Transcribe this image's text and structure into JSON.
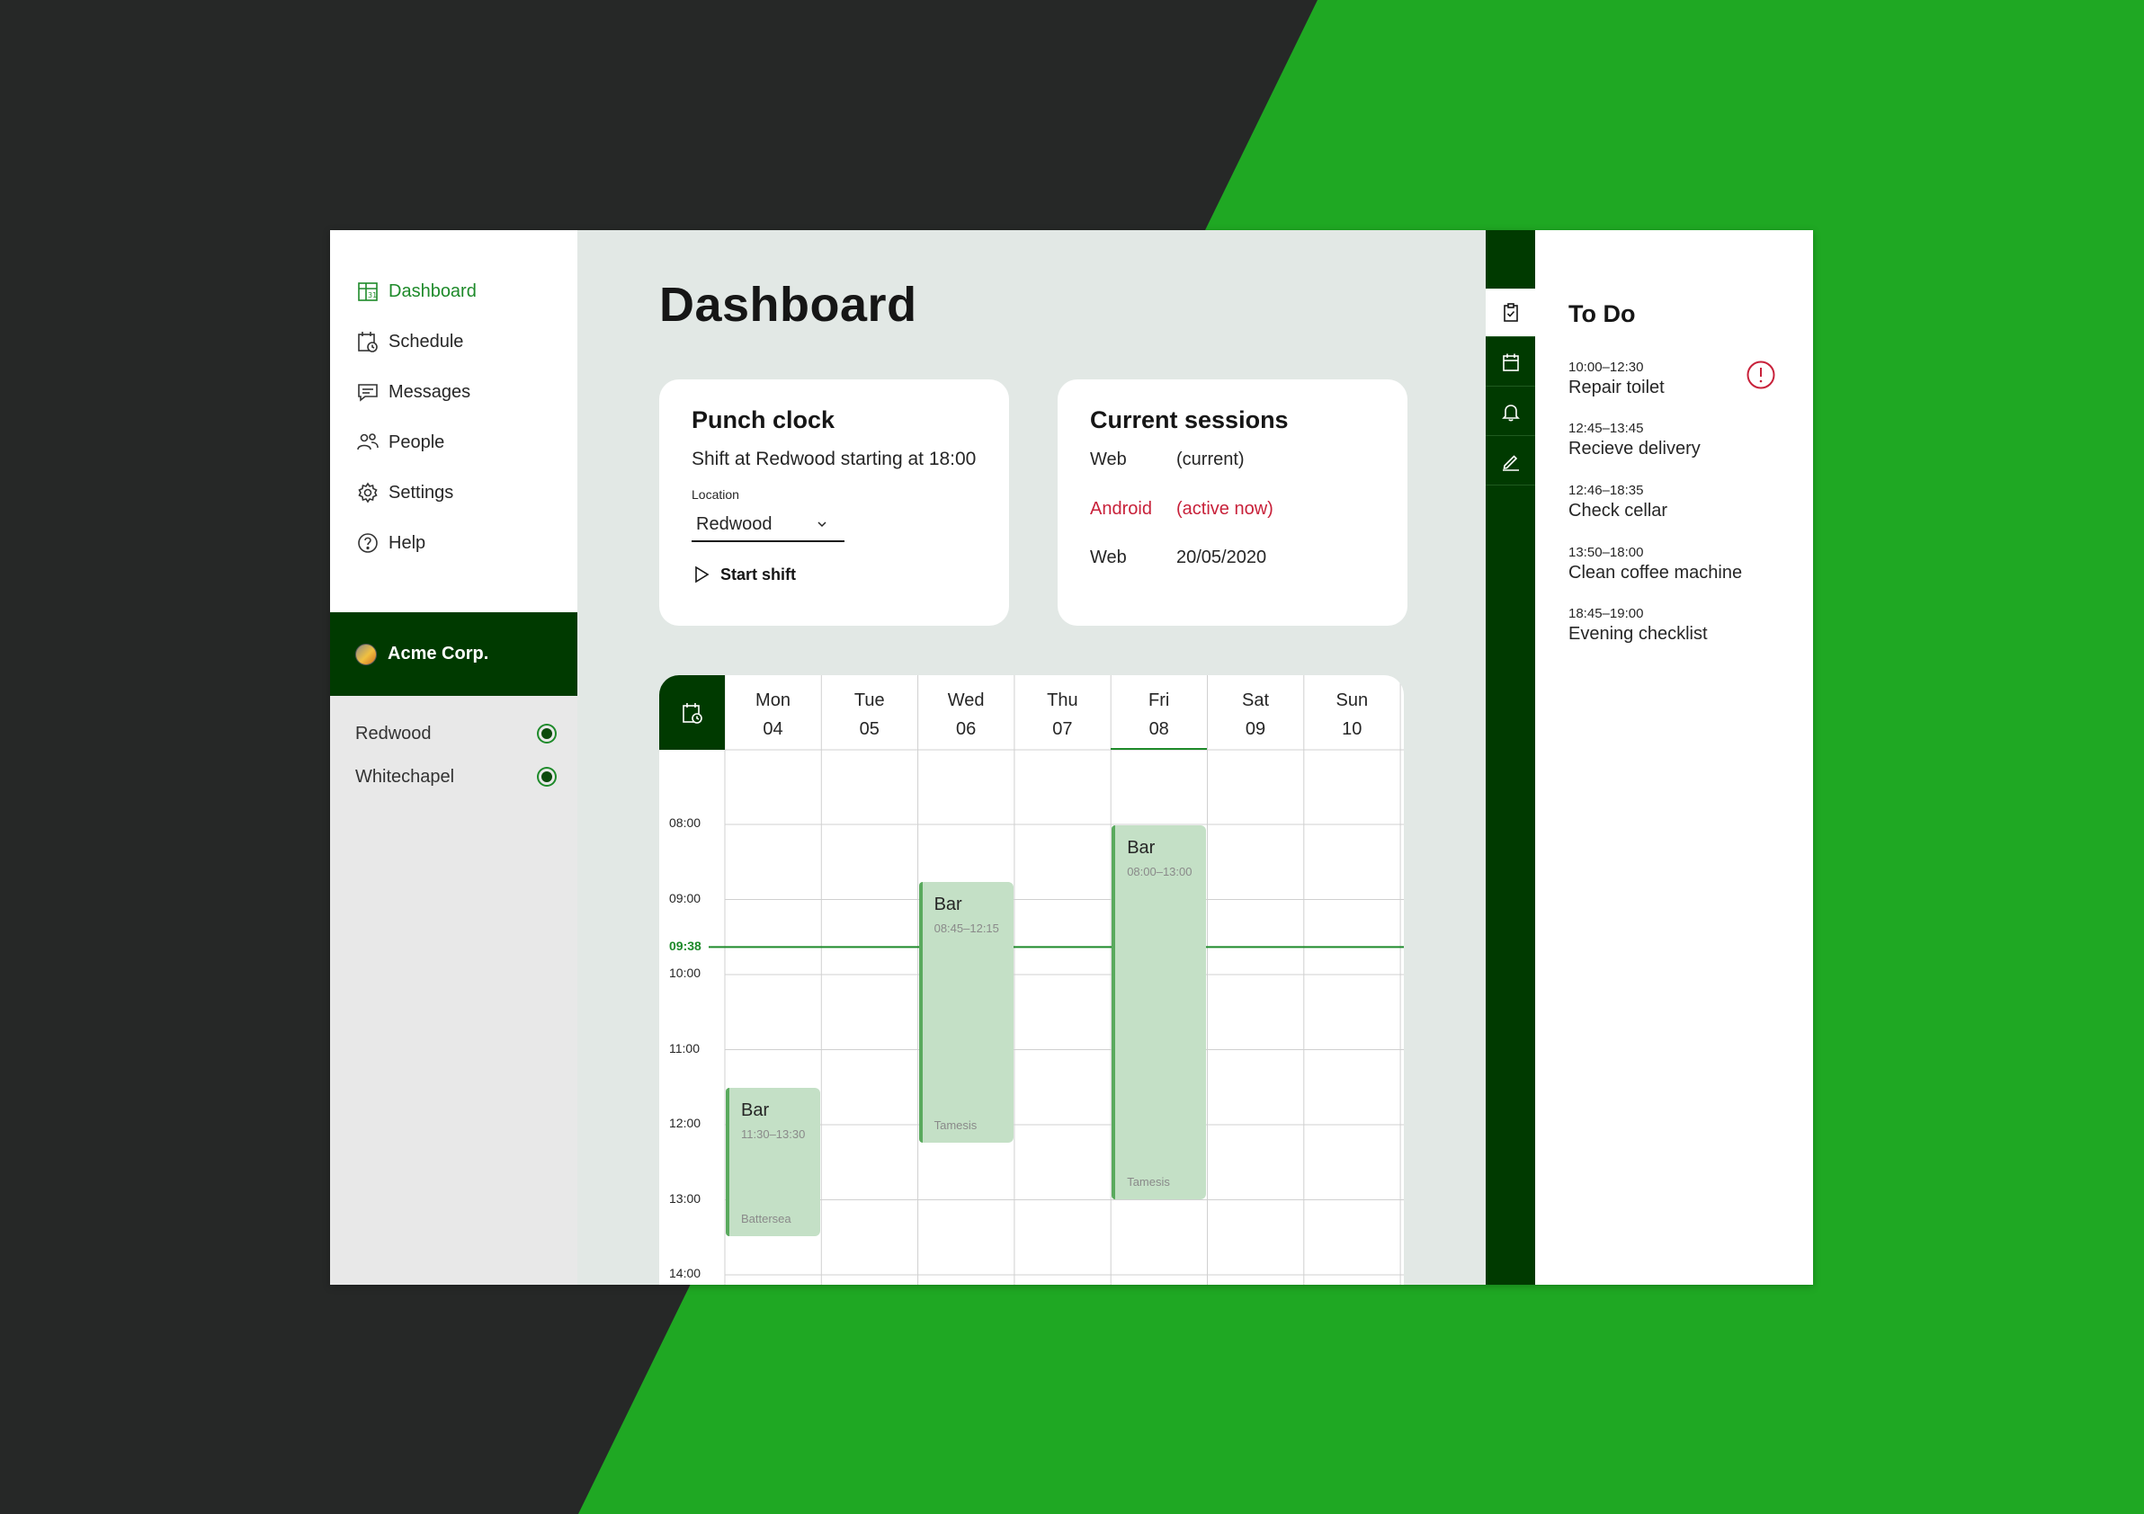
{
  "colors": {
    "accent_green": "#1e8a2a",
    "dark_green": "#003a00",
    "event_fill": "#c4e0c6",
    "alert_red": "#c8213a",
    "bright_green_bg": "#1fa823",
    "dark_bg": "#262827"
  },
  "nav": {
    "items": [
      {
        "label": "Dashboard",
        "icon": "dashboard-calendar-icon",
        "active": true
      },
      {
        "label": "Schedule",
        "icon": "schedule-clock-icon"
      },
      {
        "label": "Messages",
        "icon": "chat-icon"
      },
      {
        "label": "People",
        "icon": "people-icon"
      },
      {
        "label": "Settings",
        "icon": "gear-icon"
      },
      {
        "label": "Help",
        "icon": "help-icon"
      }
    ]
  },
  "org": {
    "name": "Acme Corp."
  },
  "locations": [
    {
      "name": "Redwood",
      "status": "online"
    },
    {
      "name": "Whitechapel",
      "status": "online"
    }
  ],
  "page": {
    "title": "Dashboard"
  },
  "punch_clock": {
    "title": "Punch clock",
    "shift_text": "Shift at Redwood starting at 18:00",
    "location_label": "Location",
    "location_value": "Redwood",
    "start_label": "Start shift"
  },
  "sessions": {
    "title": "Current sessions",
    "rows": [
      {
        "device": "Web",
        "status": "(current)"
      },
      {
        "device": "Android",
        "status": "(active now)",
        "highlight": true
      },
      {
        "device": "Web",
        "status": "20/05/2020"
      }
    ]
  },
  "calendar": {
    "days": [
      {
        "name": "Mon",
        "num": "04"
      },
      {
        "name": "Tue",
        "num": "05"
      },
      {
        "name": "Wed",
        "num": "06"
      },
      {
        "name": "Thu",
        "num": "07"
      },
      {
        "name": "Fri",
        "num": "08",
        "today": true
      },
      {
        "name": "Sat",
        "num": "09"
      },
      {
        "name": "Sun",
        "num": "10"
      }
    ],
    "hours": [
      "08:00",
      "09:00",
      "10:00",
      "11:00",
      "12:00",
      "13:00",
      "14:00"
    ],
    "now": "09:38",
    "events": [
      {
        "day": 0,
        "name": "Bar",
        "time": "11:30–13:30",
        "location": "Battersea"
      },
      {
        "day": 2,
        "name": "Bar",
        "time": "08:45–12:15",
        "location": "Tamesis"
      },
      {
        "day": 4,
        "name": "Bar",
        "time": "08:00–13:00",
        "location": "Tamesis"
      }
    ]
  },
  "rail": {
    "buttons": [
      {
        "icon": "clipboard-check-icon",
        "active": true
      },
      {
        "icon": "calendar-icon"
      },
      {
        "icon": "bell-icon"
      },
      {
        "icon": "pencil-icon"
      }
    ]
  },
  "todo": {
    "title": "To Do",
    "items": [
      {
        "time": "10:00–12:30",
        "title": "Repair toilet",
        "alert": true
      },
      {
        "time": "12:45–13:45",
        "title": "Recieve delivery"
      },
      {
        "time": "12:46–18:35",
        "title": "Check cellar"
      },
      {
        "time": "13:50–18:00",
        "title": "Clean coffee machine"
      },
      {
        "time": "18:45–19:00",
        "title": "Evening checklist"
      }
    ]
  }
}
